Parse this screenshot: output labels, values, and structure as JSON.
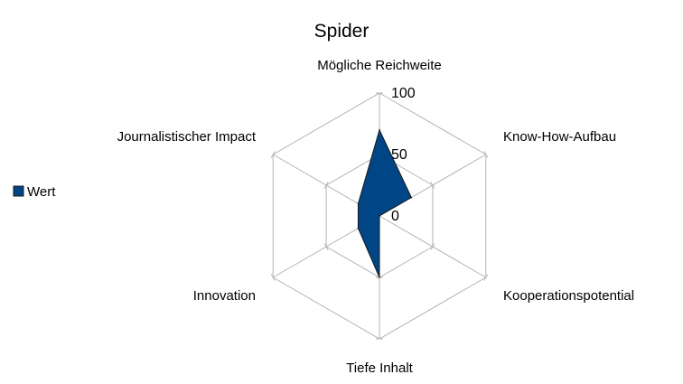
{
  "chart_data": {
    "type": "radar",
    "title": "Spider",
    "axes": [
      "Mögliche Reichweite",
      "Know-How-Aufbau",
      "Kooperationspotential",
      "Tiefe Inhalt",
      "Innovation",
      "Journalistischer Impact"
    ],
    "ticks": [
      0,
      50,
      100
    ],
    "rlim": [
      0,
      100
    ],
    "grid": true,
    "legend_position": "left",
    "series": [
      {
        "name": "Wert",
        "values": [
          70,
          30,
          0,
          50,
          20,
          20
        ],
        "fill_color": "#004586",
        "stroke_color": "#1a1a1a"
      }
    ],
    "grid_color": "#b3b3b3"
  }
}
